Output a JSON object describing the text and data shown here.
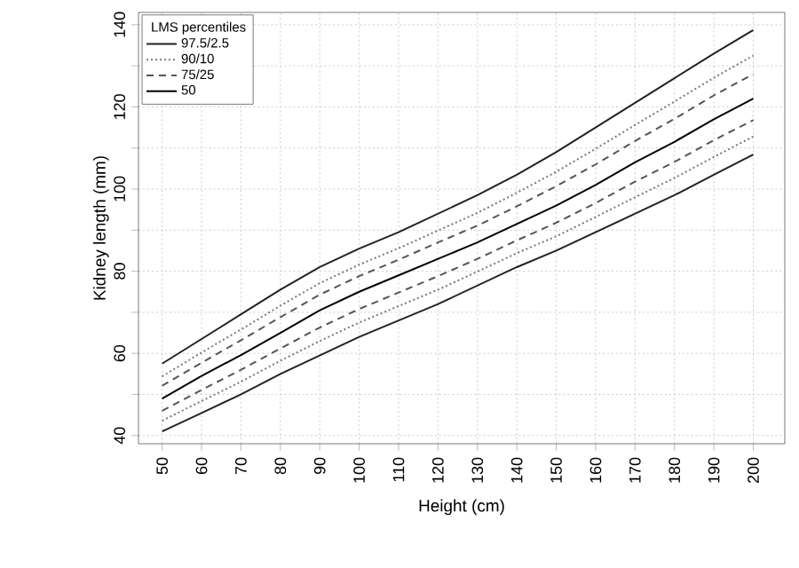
{
  "chart_data": {
    "type": "line",
    "xlabel": "Height (cm)",
    "ylabel": "Kidney length (mm)",
    "legend_title": "LMS percentiles",
    "xlim": [
      44,
      208
    ],
    "ylim": [
      38,
      143
    ],
    "xticks": [
      50,
      60,
      70,
      80,
      90,
      100,
      110,
      120,
      130,
      140,
      150,
      160,
      170,
      180,
      190,
      200
    ],
    "yticks": [
      40,
      {
        "value": 50,
        "label": null
      },
      60,
      {
        "value": 70,
        "label": null
      },
      80,
      {
        "value": 90,
        "label": null
      },
      100,
      {
        "value": 110,
        "label": null
      },
      120,
      {
        "value": 130,
        "label": null
      },
      140
    ],
    "grid": true,
    "legend": "top left",
    "marker": "none",
    "x": [
      50,
      60,
      70,
      80,
      90,
      100,
      110,
      120,
      130,
      140,
      150,
      160,
      170,
      180,
      190,
      200
    ],
    "series": [
      {
        "name": "97.5/2.5",
        "color": "#222222",
        "line_style": "solid",
        "values": [
          57.5,
          63.5,
          69.5,
          75.5,
          81,
          85.5,
          89.5,
          94,
          98.5,
          103.5,
          109,
          115,
          121,
          127,
          133,
          138.7
        ]
      },
      {
        "color": "#222222",
        "line_style": "solid",
        "values": [
          41,
          45.5,
          50,
          55,
          59.5,
          64,
          68,
          72,
          76.5,
          81,
          85,
          89.5,
          94,
          98.5,
          103.5,
          108.4
        ]
      },
      {
        "name": "90/10",
        "color": "#777777",
        "line_style": "dotted",
        "values": [
          54.4,
          60.2,
          65.8,
          71.6,
          77.1,
          81.6,
          85.6,
          89.9,
          94.2,
          99.1,
          104.2,
          109.8,
          115.6,
          121.3,
          127.1,
          132.5
        ]
      },
      {
        "color": "#777777",
        "line_style": "dotted",
        "values": [
          43.6,
          48.4,
          53.1,
          58.2,
          63.0,
          67.5,
          71.5,
          75.5,
          79.9,
          84.4,
          88.5,
          93.2,
          98.0,
          102.7,
          107.8,
          112.8
        ]
      },
      {
        "name": "75/25",
        "color": "#555555",
        "line_style": "dashed",
        "values": [
          52.1,
          57.7,
          63.2,
          68.8,
          74.3,
          78.8,
          82.8,
          87.0,
          91.1,
          95.8,
          100.7,
          106.0,
          111.7,
          117.1,
          122.8,
          128.0
        ]
      },
      {
        "color": "#555555",
        "line_style": "dashed",
        "values": [
          46.0,
          51.1,
          56.0,
          61.2,
          66.3,
          70.8,
          74.8,
          78.8,
          83.0,
          87.5,
          91.8,
          96.6,
          101.8,
          106.6,
          111.9,
          116.8
        ]
      },
      {
        "name": "50",
        "color": "#000000",
        "line_style": "solid",
        "values": [
          49,
          54.5,
          59.6,
          65,
          70.5,
          75,
          79,
          83,
          87,
          91.5,
          96,
          101,
          106.5,
          111.5,
          117,
          122
        ]
      }
    ]
  }
}
